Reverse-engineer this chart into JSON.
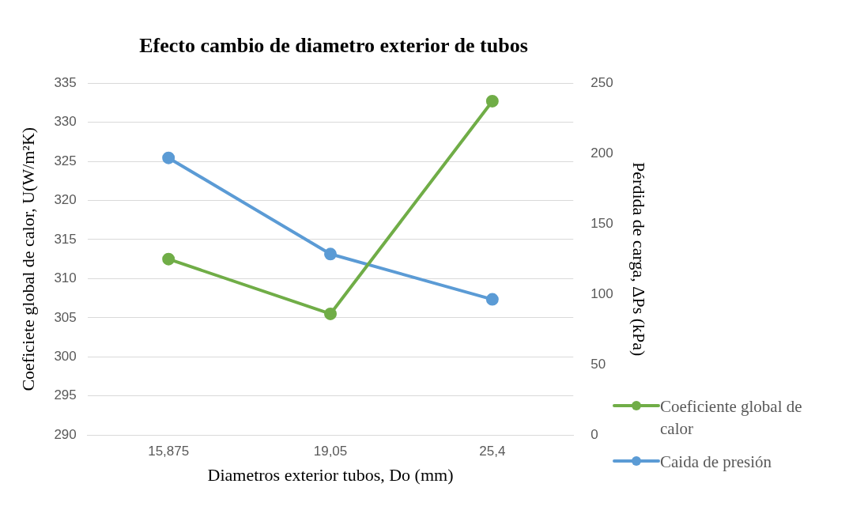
{
  "chart_data": {
    "type": "line",
    "title": "Efecto cambio de diametro exterior de tubos",
    "xlabel": "Diametros exterior tubos, Do (mm)",
    "ylabel": "Coeficiete global de calor, U(W/m²K)",
    "y2label": "Pérdida de carga, ΔPs (kPa)",
    "categories": [
      "15,875",
      "19,05",
      "25,4"
    ],
    "series": [
      {
        "name": "Coeficiente global de calor",
        "color": "#70ad47",
        "values": [
          312.5,
          305.5,
          332.7
        ]
      },
      {
        "name": "Caida de presión",
        "color": "#5b9bd5",
        "values": [
          196.9,
          128.6,
          96.4
        ],
        "axis": "y2"
      }
    ],
    "ylim": [
      290,
      335
    ],
    "yticks": [
      290,
      295,
      300,
      305,
      310,
      315,
      320,
      325,
      330,
      335
    ],
    "y2lim": [
      0,
      250
    ],
    "y2ticks": [
      0,
      50,
      100,
      150,
      200,
      250
    ],
    "grid": "y",
    "legend": "right",
    "marker": "circle",
    "line_style": "solid"
  }
}
